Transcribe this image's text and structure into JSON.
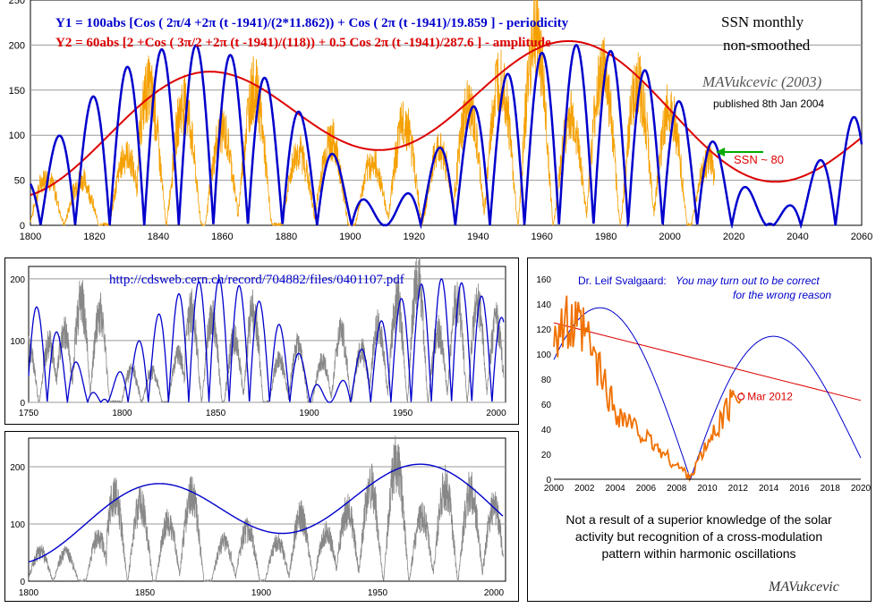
{
  "chart_data": [
    {
      "type": "line",
      "xlim": [
        1800,
        2060
      ],
      "ylim": [
        0,
        250
      ],
      "x_ticks": [
        "1800",
        "1820",
        "1840",
        "1860",
        "1880",
        "1900",
        "1920",
        "1940",
        "1960",
        "1980",
        "2000",
        "2020",
        "2040",
        "2060"
      ],
      "y_ticks": [
        "0",
        "50",
        "100",
        "150",
        "200",
        "250"
      ],
      "grid": true,
      "formula_y1": "Y1 = 100abs [Cos ( 2π/4 +2π (t -1941)/(2*11.862)) + Cos ( 2π (t -1941)/19.859 ]  - periodicity",
      "formula_y2": "Y2 = 60abs [2 +Cos ( 3π/2 +2π (t -1941)/(118)) + 0.5 Cos 2π (t -1941)/287.6 ]      - amplitude",
      "title_line1": "SSN  monthly",
      "title_line2": "non-smoothed",
      "author": "MAVukcevic  (2003)",
      "published": "published 8th Jan 2004",
      "annotation": "SSN ~ 80",
      "series": [
        {
          "name": "Y1",
          "color": "#0000cc",
          "period1": 23.724,
          "period2": 19.859,
          "scale": 100,
          "epoch": 1941
        },
        {
          "name": "Y2",
          "color": "#dd0000",
          "period1": 118,
          "period2": 287.6,
          "scale": 60,
          "epoch": 1941
        },
        {
          "name": "SSN",
          "color": "#f5a000",
          "peaks": [
            [
              1805,
              50
            ],
            [
              1816,
              47
            ],
            [
              1830,
              72
            ],
            [
              1837,
              140
            ],
            [
              1848,
              125
            ],
            [
              1860,
              98
            ],
            [
              1870,
              140
            ],
            [
              1884,
              75
            ],
            [
              1894,
              88
            ],
            [
              1907,
              64
            ],
            [
              1917,
              105
            ],
            [
              1928,
              78
            ],
            [
              1937,
              120
            ],
            [
              1947,
              155
            ],
            [
              1958,
              200
            ],
            [
              1969,
              110
            ],
            [
              1979,
              158
            ],
            [
              1990,
              145
            ],
            [
              2000,
              120
            ],
            [
              2012,
              66
            ]
          ]
        }
      ]
    },
    {
      "type": "line",
      "url": "http://cdsweb.cern.ch/record/704882/files/0401107.pdf",
      "xlim": [
        1750,
        2005
      ],
      "ylim": [
        0,
        220
      ],
      "x_ticks": [
        "1750",
        "1800",
        "1850",
        "1900",
        "1950",
        "2000"
      ],
      "y_ticks": [
        "0",
        "100",
        "200"
      ],
      "series": [
        {
          "name": "model",
          "color": "#0000cc",
          "scale": 100,
          "epoch": 1941
        },
        {
          "name": "SSN",
          "color": "#888888",
          "peaks": [
            [
              1750,
              83
            ],
            [
              1761,
              86
            ],
            [
              1769,
              106
            ],
            [
              1778,
              154
            ],
            [
              1788,
              132
            ],
            [
              1805,
              48
            ],
            [
              1816,
              46
            ],
            [
              1830,
              71
            ],
            [
              1837,
              138
            ],
            [
              1848,
              124
            ],
            [
              1860,
              95
            ],
            [
              1870,
              139
            ],
            [
              1884,
              63
            ],
            [
              1894,
              85
            ],
            [
              1907,
              62
            ],
            [
              1917,
              104
            ],
            [
              1928,
              78
            ],
            [
              1937,
              114
            ],
            [
              1947,
              152
            ],
            [
              1958,
              190
            ],
            [
              1969,
              106
            ],
            [
              1979,
              155
            ],
            [
              1990,
              146
            ],
            [
              2000,
              120
            ]
          ]
        }
      ]
    },
    {
      "type": "line",
      "xlim": [
        1800,
        2005
      ],
      "ylim": [
        0,
        250
      ],
      "x_ticks": [
        "1800",
        "1850",
        "1900",
        "1950",
        "2000"
      ],
      "y_ticks": [
        "0",
        "100",
        "200"
      ],
      "series": [
        {
          "name": "envelope",
          "color": "#0000cc",
          "scale": 60,
          "epoch": 1941
        },
        {
          "name": "SSN",
          "color": "#888888",
          "peaks": [
            [
              1805,
              48
            ],
            [
              1816,
              46
            ],
            [
              1830,
              71
            ],
            [
              1837,
              138
            ],
            [
              1848,
              124
            ],
            [
              1860,
              95
            ],
            [
              1870,
              139
            ],
            [
              1884,
              63
            ],
            [
              1894,
              85
            ],
            [
              1907,
              62
            ],
            [
              1917,
              104
            ],
            [
              1928,
              78
            ],
            [
              1937,
              114
            ],
            [
              1947,
              152
            ],
            [
              1958,
              190
            ],
            [
              1969,
              106
            ],
            [
              1979,
              155
            ],
            [
              1990,
              146
            ],
            [
              2000,
              120
            ]
          ]
        }
      ]
    },
    {
      "type": "line",
      "xlim": [
        2000,
        2020
      ],
      "ylim": [
        0,
        170
      ],
      "x_ticks": [
        "2000",
        "2002",
        "2004",
        "2006",
        "2008",
        "2010",
        "2012",
        "2014",
        "2016",
        "2018",
        "2020"
      ],
      "y_ticks": [
        "0",
        "20",
        "40",
        "60",
        "80",
        "100",
        "120",
        "140",
        "160"
      ],
      "quote_author": "Dr. Leif Svalgaard:",
      "quote_text": "You may turn out to be correct",
      "quote_text2": "for the wrong reason",
      "marker_label": "Mar 2012",
      "marker": {
        "x": 2012.2,
        "y": 66
      },
      "caption": [
        "Not a result of a superior knowledge of the solar",
        "activity but recognition of a cross-modulation",
        "pattern within harmonic oscillations"
      ],
      "signature": "MAVukcevic",
      "series": [
        {
          "name": "model",
          "color": "#0000cc"
        },
        {
          "name": "trend",
          "color": "#dd0000",
          "points": [
            [
              2000,
              125
            ],
            [
              2020,
              63
            ]
          ]
        },
        {
          "name": "SSN",
          "color": "#f07000"
        }
      ]
    }
  ]
}
